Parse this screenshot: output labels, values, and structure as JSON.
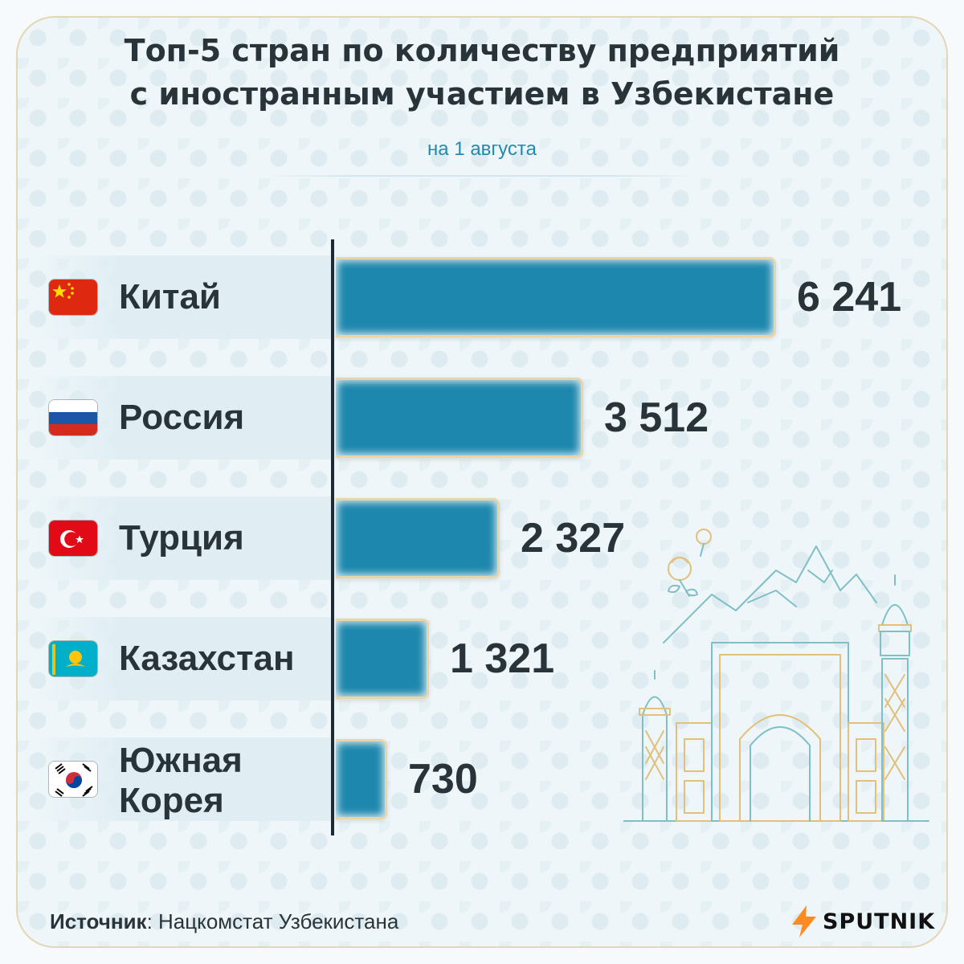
{
  "title": {
    "line1": "Топ-5 стран по количеству предприятий",
    "line2": "с иностранным участием в Узбекистане"
  },
  "subtitle": "на 1 августа",
  "chart_data": {
    "type": "bar",
    "orientation": "horizontal",
    "title": "Топ-5 стран по количеству предприятий с иностранным участием в Узбекистане",
    "subtitle": "на 1 августа",
    "categories": [
      "Китай",
      "Россия",
      "Турция",
      "Казахстан",
      "Южная Корея"
    ],
    "values": [
      6241,
      3512,
      2327,
      1321,
      730
    ],
    "value_labels": [
      "6 241",
      "3 512",
      "2 327",
      "1 321",
      "730"
    ],
    "xlim": [
      0,
      6241
    ],
    "grid": false,
    "legend": "none"
  },
  "rows": [
    {
      "name": "Китай",
      "value": "6 241",
      "flag": "china-flag-icon"
    },
    {
      "name": "Россия",
      "value": "3 512",
      "flag": "russia-flag-icon"
    },
    {
      "name": "Турция",
      "value": "2 327",
      "flag": "turkey-flag-icon"
    },
    {
      "name": "Казахстан",
      "value": "1 321",
      "flag": "kazakhstan-flag-icon"
    },
    {
      "name": "Южная Корея",
      "name_lines": [
        "Южная",
        "Корея"
      ],
      "value": "730",
      "flag": "south-korea-flag-icon"
    }
  ],
  "source": {
    "label": "Источник",
    "text": ": Нацкомстат Узбекистана"
  },
  "logo": {
    "text": "SPUTNIK",
    "icon": "sputnik-logo-icon"
  },
  "colors": {
    "bar": "#1d87ad",
    "bar_border": "#e8d6a8",
    "axis": "#1d2a33",
    "text": "#29333a",
    "subtitle": "#1f8bb0",
    "illustration_teal": "#7fc0c6",
    "illustration_gold": "#e2c07b",
    "logo_orange": "#ff8a1f"
  }
}
